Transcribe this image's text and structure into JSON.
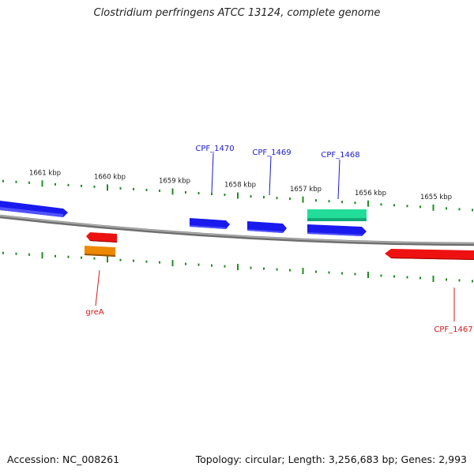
{
  "title": "Clostridium perfringens ATCC 13124, complete genome",
  "footer": {
    "accession": "Accession: NC_008261",
    "summary": "Topology: circular; Length: 3,256,683 bp; Genes: 2,993"
  },
  "colors": {
    "blue": "#1a1aee",
    "red": "#ee1111",
    "orange": "#ee8800",
    "teal": "#22dd99",
    "backbone": "#888888",
    "tick": "#228b22",
    "label_blue": "#1a1ad0",
    "label_red": "#d01a1a"
  },
  "scale_labels": [
    "1661 kbp",
    "1660 kbp",
    "1659 kbp",
    "1658 kbp",
    "1657 kbp",
    "1656 kbp",
    "1655 kbp"
  ],
  "gene_labels": {
    "forward": [
      "CPF_1470",
      "CPF_1469",
      "CPF_1468"
    ],
    "reverse": [
      "greA",
      "CPF_1467"
    ]
  }
}
